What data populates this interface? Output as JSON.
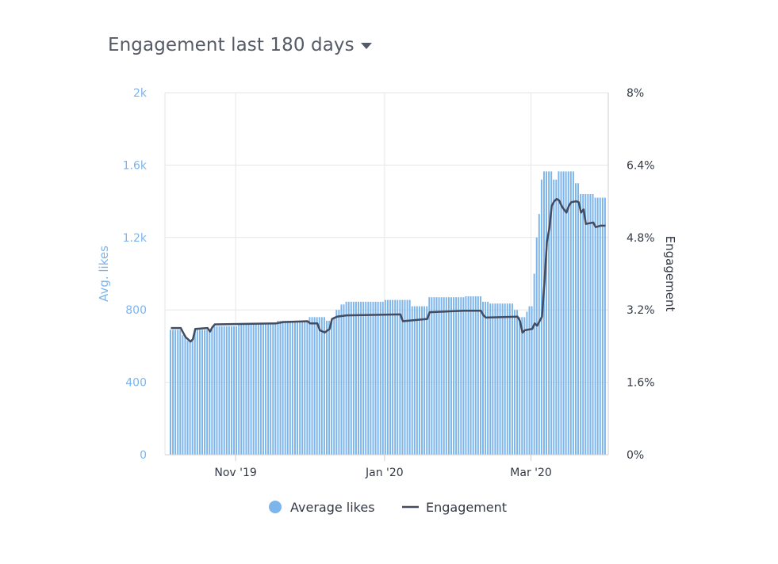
{
  "header": {
    "title": "Engagement last 180 days"
  },
  "colors": {
    "bars": "#7cb5ec",
    "line": "#434b5f",
    "grid": "#e6e6e6"
  },
  "chart_data": {
    "type": "bar+line",
    "x_type": "date",
    "x_range": [
      "2019-10-05",
      "2020-03-31"
    ],
    "x_ticks": [
      {
        "date": "2019-11-01",
        "label": "Nov '19"
      },
      {
        "date": "2020-01-01",
        "label": "Jan '20"
      },
      {
        "date": "2020-03-01",
        "label": "Mar '20"
      }
    ],
    "y_left": {
      "label": "Avg. likes",
      "ylim": [
        0,
        2000
      ],
      "ticks": [
        0,
        400,
        800,
        1200,
        1600,
        2000
      ],
      "tick_labels": [
        "0",
        "400",
        "800",
        "1.2k",
        "1.6k",
        "2k"
      ]
    },
    "y_right": {
      "label": "Engagement",
      "ylim": [
        0,
        8
      ],
      "ticks": [
        0,
        1.6,
        3.2,
        4.8,
        6.4,
        8
      ],
      "tick_labels": [
        "0%",
        "1.6%",
        "3.2%",
        "4.8%",
        "6.4%",
        "8%"
      ]
    },
    "grid": true,
    "legend": {
      "position": "bottom-center",
      "items": [
        "Average likes",
        "Engagement"
      ]
    },
    "series": [
      {
        "name": "Average likes",
        "type": "bar",
        "axis": "left",
        "segments": [
          {
            "start": "2019-10-05",
            "end": "2019-10-09",
            "value": 690
          },
          {
            "start": "2019-10-10",
            "end": "2019-10-11",
            "value": 660
          },
          {
            "start": "2019-10-12",
            "end": "2019-10-14",
            "value": 630
          },
          {
            "start": "2019-10-15",
            "end": "2019-10-22",
            "value": 690
          },
          {
            "start": "2019-10-23",
            "end": "2019-11-01",
            "value": 710
          },
          {
            "start": "2019-11-02",
            "end": "2019-11-17",
            "value": 720
          },
          {
            "start": "2019-11-18",
            "end": "2019-11-30",
            "value": 740
          },
          {
            "start": "2019-12-01",
            "end": "2019-12-07",
            "value": 760
          },
          {
            "start": "2019-12-08",
            "end": "2019-12-10",
            "value": 740
          },
          {
            "start": "2019-12-11",
            "end": "2019-12-11",
            "value": 760
          },
          {
            "start": "2019-12-12",
            "end": "2019-12-13",
            "value": 800
          },
          {
            "start": "2019-12-14",
            "end": "2019-12-15",
            "value": 830
          },
          {
            "start": "2019-12-16",
            "end": "2019-12-31",
            "value": 845
          },
          {
            "start": "2020-01-01",
            "end": "2020-01-11",
            "value": 855
          },
          {
            "start": "2020-01-12",
            "end": "2020-01-18",
            "value": 820
          },
          {
            "start": "2020-01-19",
            "end": "2020-02-02",
            "value": 870
          },
          {
            "start": "2020-02-03",
            "end": "2020-02-09",
            "value": 875
          },
          {
            "start": "2020-02-10",
            "end": "2020-02-12",
            "value": 845
          },
          {
            "start": "2020-02-13",
            "end": "2020-02-22",
            "value": 835
          },
          {
            "start": "2020-02-23",
            "end": "2020-02-24",
            "value": 800
          },
          {
            "start": "2020-02-25",
            "end": "2020-02-27",
            "value": 760
          },
          {
            "start": "2020-02-28",
            "end": "2020-02-28",
            "value": 790
          },
          {
            "start": "2020-02-29",
            "end": "2020-03-01",
            "value": 820
          },
          {
            "start": "2020-03-02",
            "end": "2020-03-02",
            "value": 1000
          },
          {
            "start": "2020-03-03",
            "end": "2020-03-03",
            "value": 1200
          },
          {
            "start": "2020-03-04",
            "end": "2020-03-04",
            "value": 1330
          },
          {
            "start": "2020-03-05",
            "end": "2020-03-05",
            "value": 1520
          },
          {
            "start": "2020-03-06",
            "end": "2020-03-09",
            "value": 1565
          },
          {
            "start": "2020-03-10",
            "end": "2020-03-11",
            "value": 1520
          },
          {
            "start": "2020-03-12",
            "end": "2020-03-18",
            "value": 1565
          },
          {
            "start": "2020-03-19",
            "end": "2020-03-20",
            "value": 1500
          },
          {
            "start": "2020-03-21",
            "end": "2020-03-26",
            "value": 1440
          },
          {
            "start": "2020-03-27",
            "end": "2020-03-31",
            "value": 1420
          }
        ]
      },
      {
        "name": "Engagement",
        "type": "line",
        "axis": "right",
        "points": [
          [
            "2019-10-05",
            2.8
          ],
          [
            "2019-10-09",
            2.8
          ],
          [
            "2019-10-10",
            2.7
          ],
          [
            "2019-10-11",
            2.6
          ],
          [
            "2019-10-12",
            2.55
          ],
          [
            "2019-10-13",
            2.5
          ],
          [
            "2019-10-14",
            2.55
          ],
          [
            "2019-10-15",
            2.78
          ],
          [
            "2019-10-20",
            2.8
          ],
          [
            "2019-10-21",
            2.72
          ],
          [
            "2019-10-22",
            2.82
          ],
          [
            "2019-10-23",
            2.88
          ],
          [
            "2019-11-17",
            2.9
          ],
          [
            "2019-11-20",
            2.93
          ],
          [
            "2019-11-30",
            2.95
          ],
          [
            "2019-12-01",
            2.9
          ],
          [
            "2019-12-04",
            2.9
          ],
          [
            "2019-12-05",
            2.75
          ],
          [
            "2019-12-07",
            2.7
          ],
          [
            "2019-12-09",
            2.78
          ],
          [
            "2019-12-10",
            3.0
          ],
          [
            "2019-12-12",
            3.05
          ],
          [
            "2019-12-16",
            3.08
          ],
          [
            "2020-01-07",
            3.1
          ],
          [
            "2020-01-08",
            2.95
          ],
          [
            "2020-01-18",
            3.0
          ],
          [
            "2020-01-19",
            3.15
          ],
          [
            "2020-02-02",
            3.18
          ],
          [
            "2020-02-09",
            3.18
          ],
          [
            "2020-02-10",
            3.08
          ],
          [
            "2020-02-11",
            3.03
          ],
          [
            "2020-02-24",
            3.05
          ],
          [
            "2020-02-25",
            2.95
          ],
          [
            "2020-02-26",
            2.7
          ],
          [
            "2020-02-27",
            2.75
          ],
          [
            "2020-03-01",
            2.78
          ],
          [
            "2020-03-02",
            2.9
          ],
          [
            "2020-03-03",
            2.85
          ],
          [
            "2020-03-04",
            2.95
          ],
          [
            "2020-03-05",
            3.05
          ],
          [
            "2020-03-06",
            3.8
          ],
          [
            "2020-03-07",
            4.7
          ],
          [
            "2020-03-08",
            5.0
          ],
          [
            "2020-03-09",
            5.5
          ],
          [
            "2020-03-10",
            5.6
          ],
          [
            "2020-03-11",
            5.65
          ],
          [
            "2020-03-12",
            5.62
          ],
          [
            "2020-03-13",
            5.5
          ],
          [
            "2020-03-14",
            5.42
          ],
          [
            "2020-03-15",
            5.35
          ],
          [
            "2020-03-16",
            5.5
          ],
          [
            "2020-03-17",
            5.58
          ],
          [
            "2020-03-19",
            5.6
          ],
          [
            "2020-03-20",
            5.58
          ],
          [
            "2020-03-21",
            5.35
          ],
          [
            "2020-03-22",
            5.42
          ],
          [
            "2020-03-23",
            5.1
          ],
          [
            "2020-03-26",
            5.13
          ],
          [
            "2020-03-27",
            5.03
          ],
          [
            "2020-03-29",
            5.06
          ],
          [
            "2020-03-31",
            5.06
          ]
        ]
      }
    ]
  }
}
